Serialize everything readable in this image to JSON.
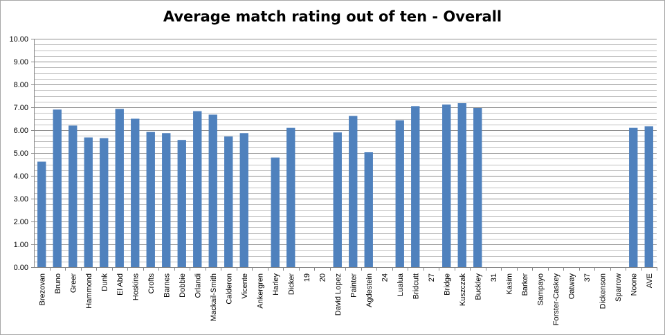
{
  "chart_data": {
    "type": "bar",
    "title": "Average match rating out of ten - Overall",
    "xlabel": "",
    "ylabel": "",
    "ylim": [
      0,
      10
    ],
    "y_ticks": [
      "0.00",
      "1.00",
      "2.00",
      "3.00",
      "4.00",
      "5.00",
      "6.00",
      "7.00",
      "8.00",
      "9.00",
      "10.00"
    ],
    "grid": true,
    "legend": "none",
    "bar_color": "#4f81bd",
    "categories": [
      "Brezovan",
      "Bruno",
      "Greer",
      "Hammond",
      "Dunk",
      "El Abd",
      "Hoskins",
      "Crofts",
      "Barnes",
      "Dobbie",
      "Orlandi",
      "Mackail-Smith",
      "Calderon",
      "Vicente",
      "Ankergren",
      "Harley",
      "Dicker",
      "19",
      "20",
      "David Lopez",
      "Painter",
      "Agdestein",
      "24",
      "Lualua",
      "Bridcutt",
      "27",
      "Bridge",
      "Kuszczak",
      "Buckley",
      "31",
      "Kasim",
      "Barker",
      "Sampayo",
      "Forster-Caskey",
      "Oatway",
      "37",
      "Dickenson",
      "Sparrow",
      "Noone",
      "AVE"
    ],
    "values": [
      4.62,
      6.9,
      6.2,
      5.68,
      5.65,
      6.93,
      6.5,
      5.92,
      5.87,
      5.57,
      6.83,
      6.68,
      5.72,
      5.87,
      null,
      4.8,
      6.1,
      null,
      null,
      5.9,
      6.62,
      5.03,
      null,
      6.43,
      7.05,
      null,
      7.12,
      7.18,
      6.97,
      null,
      null,
      null,
      null,
      null,
      null,
      null,
      null,
      null,
      6.1,
      6.17
    ]
  }
}
